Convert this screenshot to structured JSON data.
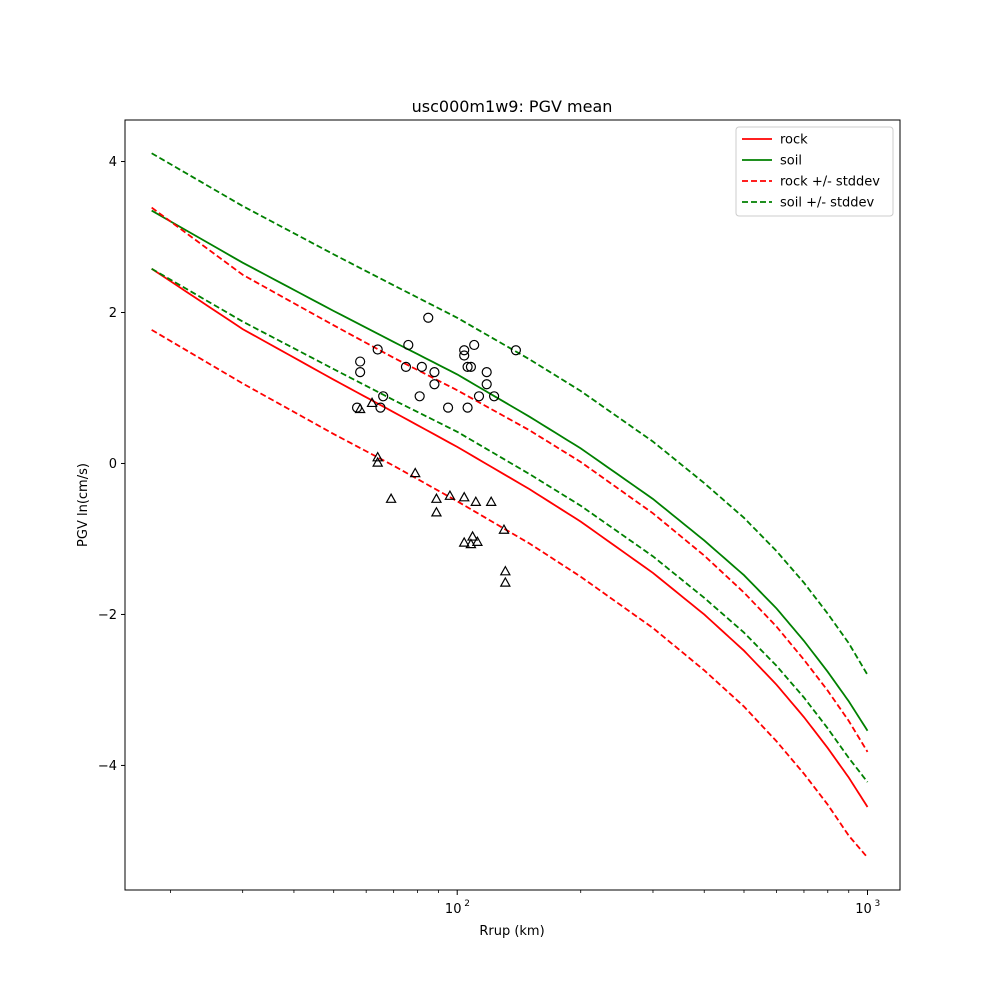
{
  "chart_data": {
    "type": "line",
    "title": "usc000m1w9: PGV mean",
    "xlabel": "Rrup (km)",
    "ylabel": "PGV ln(cm/s)",
    "xscale": "log",
    "xlim": [
      15.5,
      1200
    ],
    "ylim": [
      -5.65,
      4.55
    ],
    "x_ticks": [
      {
        "value": 100,
        "base": "10",
        "exp": "2"
      },
      {
        "value": 1000,
        "base": "10",
        "exp": "3"
      }
    ],
    "y_ticks": [
      {
        "value": 4,
        "label": "4"
      },
      {
        "value": 2,
        "label": "2"
      },
      {
        "value": 0,
        "label": "0"
      },
      {
        "value": -2,
        "label": "−2"
      },
      {
        "value": -4,
        "label": "−4"
      }
    ],
    "x": [
      18,
      30,
      50,
      70,
      100,
      150,
      200,
      300,
      400,
      500,
      600,
      700,
      800,
      900,
      1000
    ],
    "series": [
      {
        "name": "rock",
        "color": "#ff0000",
        "dash": "solid",
        "values": [
          2.58,
          1.78,
          1.11,
          0.68,
          0.22,
          -0.34,
          -0.77,
          -1.45,
          -2.0,
          -2.48,
          -2.93,
          -3.36,
          -3.77,
          -4.16,
          -4.55
        ]
      },
      {
        "name": "soil",
        "color": "#008000",
        "dash": "solid",
        "values": [
          3.35,
          2.66,
          2.02,
          1.61,
          1.18,
          0.62,
          0.2,
          -0.47,
          -1.02,
          -1.48,
          -1.92,
          -2.35,
          -2.76,
          -3.15,
          -3.54
        ]
      },
      {
        "name": "rock +/- stddev",
        "color": "#ff0000",
        "dash": "dashed",
        "values": [
          3.39,
          2.5,
          1.83,
          1.4,
          0.97,
          0.44,
          0.02,
          -0.66,
          -1.22,
          -1.71,
          -2.16,
          -2.6,
          -3.01,
          -3.41,
          -3.82
        ]
      },
      {
        "name": "rock +/- stddev",
        "color": "#ff0000",
        "dash": "dashed",
        "legend": false,
        "values": [
          1.77,
          1.06,
          0.39,
          -0.03,
          -0.5,
          -1.06,
          -1.5,
          -2.18,
          -2.74,
          -3.22,
          -3.68,
          -4.11,
          -4.52,
          -4.93,
          -5.22
        ]
      },
      {
        "name": "soil +/- stddev",
        "color": "#008000",
        "dash": "dashed",
        "values": [
          4.11,
          3.41,
          2.77,
          2.36,
          1.93,
          1.38,
          0.96,
          0.29,
          -0.26,
          -0.72,
          -1.16,
          -1.58,
          -1.99,
          -2.38,
          -2.8
        ]
      },
      {
        "name": "soil +/- stddev",
        "color": "#008000",
        "dash": "dashed",
        "legend": false,
        "values": [
          2.58,
          1.88,
          1.25,
          0.84,
          0.42,
          -0.14,
          -0.56,
          -1.23,
          -1.78,
          -2.24,
          -2.68,
          -3.1,
          -3.51,
          -3.9,
          -4.22
        ]
      }
    ],
    "circle_points": [
      [
        57,
        0.74
      ],
      [
        58,
        1.35
      ],
      [
        58,
        1.21
      ],
      [
        64,
        1.51
      ],
      [
        65,
        0.74
      ],
      [
        66,
        0.89
      ],
      [
        75,
        1.28
      ],
      [
        76,
        1.57
      ],
      [
        81,
        0.89
      ],
      [
        82,
        1.28
      ],
      [
        85,
        1.93
      ],
      [
        88,
        1.21
      ],
      [
        88,
        1.05
      ],
      [
        95,
        0.74
      ],
      [
        104,
        1.43
      ],
      [
        104,
        1.5
      ],
      [
        106,
        0.74
      ],
      [
        106,
        1.28
      ],
      [
        108,
        1.28
      ],
      [
        110,
        1.57
      ],
      [
        113,
        0.89
      ],
      [
        118,
        1.21
      ],
      [
        118,
        1.05
      ],
      [
        123,
        0.89
      ],
      [
        139,
        1.5
      ]
    ],
    "triangle_points": [
      [
        58,
        0.72
      ],
      [
        62,
        0.8
      ],
      [
        64,
        0.08
      ],
      [
        64,
        0.01
      ],
      [
        69,
        -0.47
      ],
      [
        79,
        -0.13
      ],
      [
        89,
        -0.47
      ],
      [
        89,
        -0.65
      ],
      [
        96,
        -0.43
      ],
      [
        104,
        -1.05
      ],
      [
        104,
        -0.45
      ],
      [
        108,
        -1.07
      ],
      [
        109,
        -0.97
      ],
      [
        111,
        -0.51
      ],
      [
        112,
        -1.04
      ],
      [
        121,
        -0.51
      ],
      [
        130,
        -0.88
      ],
      [
        131,
        -1.43
      ],
      [
        131,
        -1.58
      ]
    ],
    "legend": [
      {
        "label": "rock",
        "color": "#ff0000",
        "dash": "solid"
      },
      {
        "label": "soil",
        "color": "#008000",
        "dash": "solid"
      },
      {
        "label": "rock +/- stddev",
        "color": "#ff0000",
        "dash": "dashed"
      },
      {
        "label": "soil +/- stddev",
        "color": "#008000",
        "dash": "dashed"
      }
    ],
    "legend_position": "top-right",
    "grid": false
  }
}
